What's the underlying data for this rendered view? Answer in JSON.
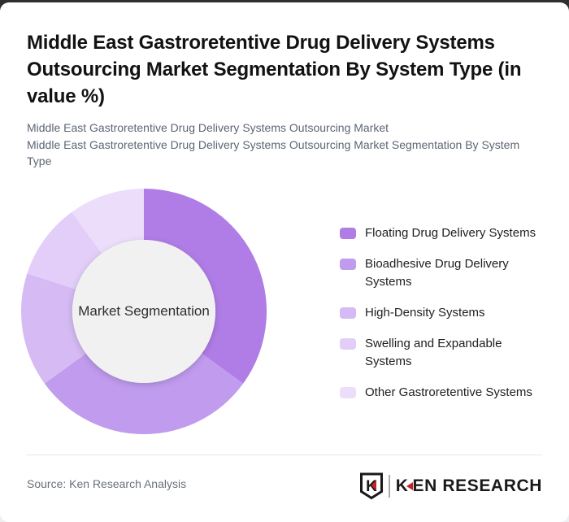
{
  "header": {
    "title": "Middle East Gastroretentive Drug Delivery Systems Outsourcing Market Segmentation By System Type (in value %)",
    "subtitle1": "Middle East Gastroretentive Drug Delivery Systems Outsourcing Market",
    "subtitle2": "Middle East Gastroretentive Drug Delivery Systems Outsourcing Market Segmentation By System Type"
  },
  "chart_data": {
    "type": "pie",
    "subtype": "donut",
    "center_label": "Market Segmentation",
    "units": "value %",
    "legend_position": "right",
    "direction": "clockwise",
    "start_angle_deg": 0,
    "inner_radius_ratio": 0.583,
    "inner_circle_color": "#f1f1f2",
    "segments": [
      {
        "label": "Floating Drug Delivery Systems",
        "value": 35,
        "color": "#b07ce6"
      },
      {
        "label": "Bioadhesive Drug Delivery Systems",
        "value": 30,
        "color": "#c09bee"
      },
      {
        "label": "High-Density Systems",
        "value": 15,
        "color": "#d5baf3"
      },
      {
        "label": "Swelling and Expandable Systems",
        "value": 10,
        "color": "#e2cef8"
      },
      {
        "label": "Other Gastroretentive Systems",
        "value": 10,
        "color": "#ecdefb"
      }
    ]
  },
  "footer": {
    "source": "Source: Ken Research Analysis",
    "logo_mark": "K",
    "logo_text": "KEN RESEARCH",
    "logo_accent_color": "#c52127"
  }
}
